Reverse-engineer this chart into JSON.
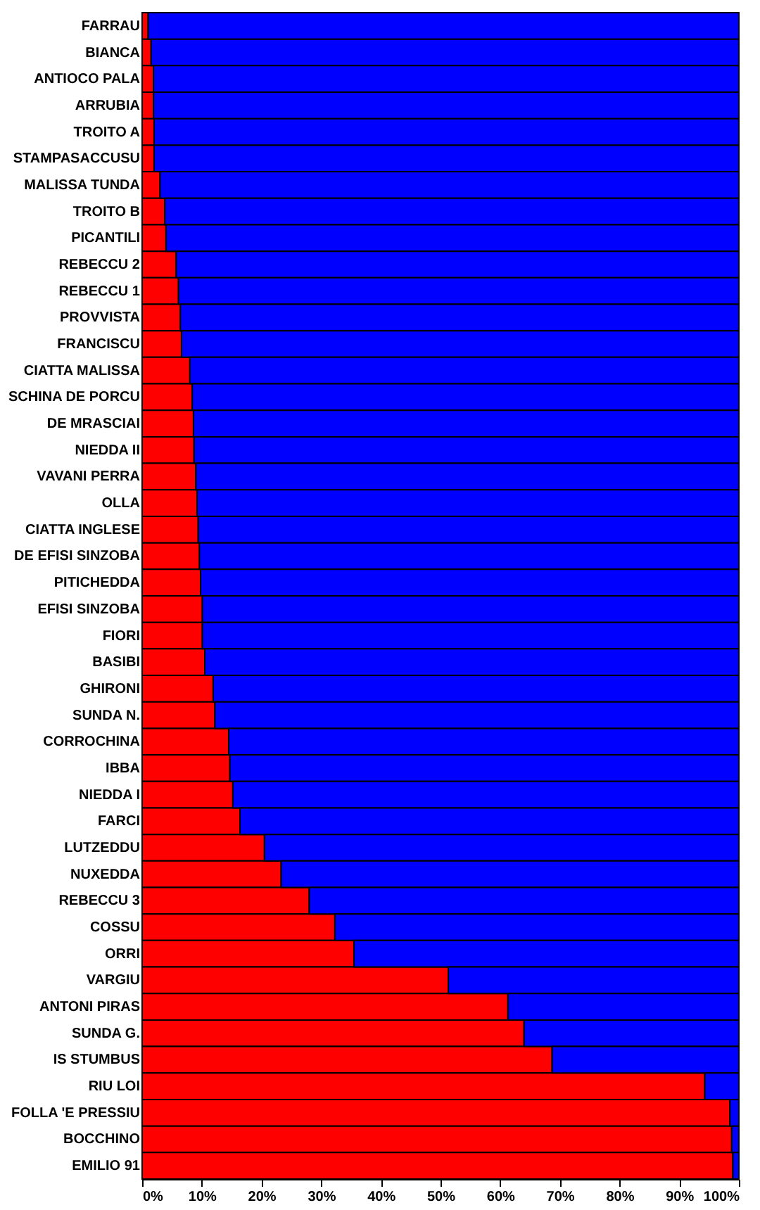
{
  "chart_data": {
    "type": "bar",
    "orientation": "horizontal",
    "stacked": true,
    "categories": [
      "FARRAU",
      "BIANCA",
      "ANTIOCO PALA",
      "ARRUBIA",
      "TROITO A",
      "STAMPASACCUSU",
      "MALISSA TUNDA",
      "TROITO B",
      "PICANTILI",
      "REBECCU 2",
      "REBECCU 1",
      "PROVVISTA",
      "FRANCISCU",
      "CIATTA MALISSA",
      "SCHINA DE PORCU",
      "DE MRASCIAI",
      "NIEDDA  II",
      "VAVANI PERRA",
      "OLLA",
      "CIATTA INGLESE",
      "DE EFISI SINZOBA",
      "PITICHEDDA",
      "EFISI SINZOBA",
      "FIORI",
      "BASIBI",
      "GHIRONI",
      "SUNDA N.",
      "CORROCHINA",
      "IBBA",
      "NIEDDA  I",
      "FARCI",
      "LUTZEDDU",
      "NUXEDDA",
      "REBECCU 3",
      "COSSU",
      "ORRI",
      "VARGIU",
      "ANTONI PIRAS",
      "SUNDA G.",
      "IS STUMBUS",
      "RIU LOI",
      "FOLLA 'E PRESSIU",
      "BOCCHINO",
      "EMILIO 91"
    ],
    "series": [
      {
        "color": "#ff0000",
        "values": [
          1,
          1.5,
          1.9,
          1.9,
          2,
          2,
          3,
          3.8,
          4,
          5.7,
          6.1,
          6.4,
          6.6,
          8,
          8.4,
          8.6,
          8.7,
          9,
          9.2,
          9.4,
          9.6,
          9.8,
          10.1,
          10.1,
          10.5,
          11.9,
          12.2,
          14.5,
          14.7,
          15.2,
          16.4,
          20.5,
          23.3,
          28,
          32.3,
          35.5,
          51.3,
          61.3,
          64,
          68.7,
          94.3,
          98.5,
          98.8,
          99
        ]
      },
      {
        "color": "#0000ff",
        "values": [
          99,
          98.5,
          98.1,
          98.1,
          98,
          98,
          97,
          96.2,
          96,
          94.3,
          93.9,
          93.6,
          93.4,
          92,
          91.6,
          91.4,
          91.3,
          91,
          90.8,
          90.6,
          90.4,
          90.2,
          89.9,
          89.9,
          89.5,
          88.1,
          87.8,
          85.5,
          85.3,
          84.8,
          83.6,
          79.5,
          76.7,
          72,
          67.7,
          64.5,
          48.7,
          38.7,
          36,
          31.3,
          5.7,
          1.5,
          1.2,
          1
        ]
      }
    ],
    "xlim": [
      0,
      100
    ],
    "xticks": [
      {
        "value": 0,
        "label": "0%"
      },
      {
        "value": 10,
        "label": "10%"
      },
      {
        "value": 20,
        "label": "20%"
      },
      {
        "value": 30,
        "label": "30%"
      },
      {
        "value": 40,
        "label": "40%"
      },
      {
        "value": 50,
        "label": "50%"
      },
      {
        "value": 60,
        "label": "60%"
      },
      {
        "value": 70,
        "label": "70%"
      },
      {
        "value": 80,
        "label": "80%"
      },
      {
        "value": 90,
        "label": "90%"
      },
      {
        "value": 100,
        "label": "100%"
      }
    ]
  }
}
